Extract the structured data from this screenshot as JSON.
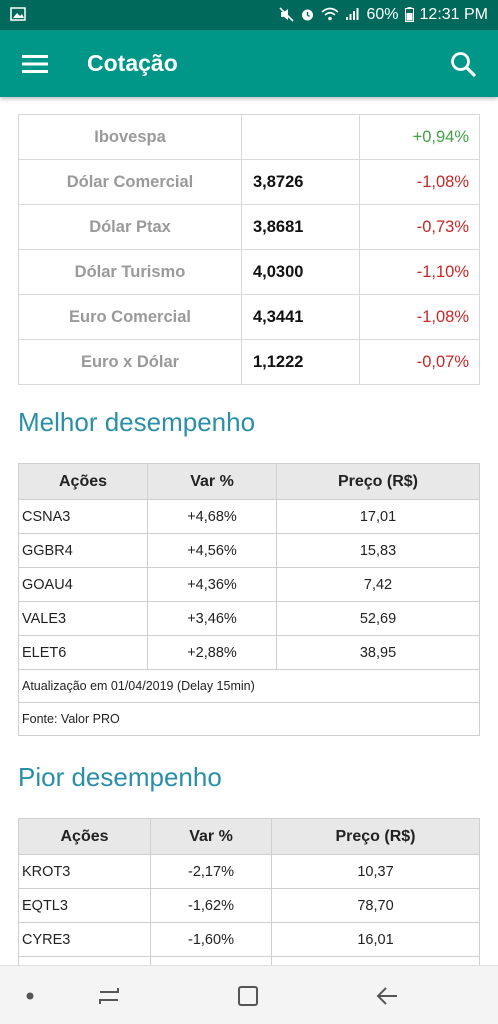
{
  "statusbar": {
    "battery": "60%",
    "time": "12:31 PM"
  },
  "appbar": {
    "title": "Cotação"
  },
  "quotes": [
    {
      "name": "Ibovespa",
      "value": "",
      "change": "+0,94%",
      "direction": "up"
    },
    {
      "name": "Dólar Comercial",
      "value": "3,8726",
      "change": "-1,08%",
      "direction": "down"
    },
    {
      "name": "Dólar Ptax",
      "value": "3,8681",
      "change": "-0,73%",
      "direction": "down"
    },
    {
      "name": "Dólar Turismo",
      "value": "4,0300",
      "change": "-1,10%",
      "direction": "down"
    },
    {
      "name": "Euro Comercial",
      "value": "4,3441",
      "change": "-1,08%",
      "direction": "down"
    },
    {
      "name": "Euro x Dólar",
      "value": "1,1222",
      "change": "-0,07%",
      "direction": "down"
    }
  ],
  "best": {
    "title": "Melhor desempenho",
    "headers": [
      "Ações",
      "Var %",
      "Preço (R$)"
    ],
    "rows": [
      {
        "ticker": "CSNA3",
        "var": "+4,68%",
        "price": "17,01"
      },
      {
        "ticker": "GGBR4",
        "var": "+4,56%",
        "price": "15,83"
      },
      {
        "ticker": "GOAU4",
        "var": "+4,36%",
        "price": "7,42"
      },
      {
        "ticker": "VALE3",
        "var": "+3,46%",
        "price": "52,69"
      },
      {
        "ticker": "ELET6",
        "var": "+2,88%",
        "price": "38,95"
      }
    ],
    "update_note": "Atualização em 01/04/2019 (Delay 15min)",
    "source_note": "Fonte: Valor PRO"
  },
  "worst": {
    "title": "Pior desempenho",
    "headers": [
      "Ações",
      "Var %",
      "Preço (R$)"
    ],
    "rows": [
      {
        "ticker": "KROT3",
        "var": "-2,17%",
        "price": "10,37"
      },
      {
        "ticker": "EQTL3",
        "var": "-1,62%",
        "price": "78,70"
      },
      {
        "ticker": "CYRE3",
        "var": "-1,60%",
        "price": "16,01"
      }
    ]
  },
  "colors": {
    "statusbar": "#00695c",
    "appbar": "#009688",
    "section_title": "#2a8fa8",
    "negative": "#c62828",
    "positive": "#43a047"
  }
}
